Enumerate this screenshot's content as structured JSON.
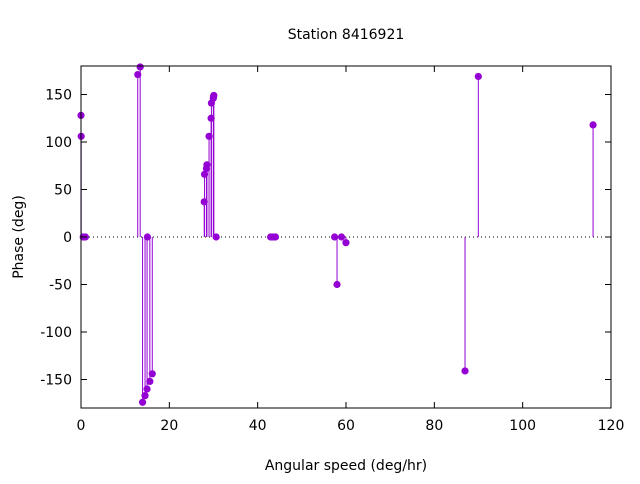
{
  "chart_data": {
    "type": "scatter",
    "style": "impulses-with-points",
    "title": "Station 8416921",
    "xlabel": "Angular speed (deg/hr)",
    "ylabel": "Phase (deg)",
    "xlim": [
      0,
      120
    ],
    "ylim": [
      -180,
      180
    ],
    "xticks": [
      0,
      20,
      40,
      60,
      80,
      100,
      120
    ],
    "yticks": [
      -150,
      -100,
      -50,
      0,
      50,
      100,
      150
    ],
    "grid": false,
    "zero_line": true,
    "color": "#9400d3",
    "series": [
      {
        "points": [
          {
            "x": 0.0,
            "y": 128
          },
          {
            "x": 0.04,
            "y": 106
          },
          {
            "x": 0.5,
            "y": 0
          },
          {
            "x": 1.0,
            "y": 0
          },
          {
            "x": 12.85,
            "y": 171
          },
          {
            "x": 13.4,
            "y": 179
          },
          {
            "x": 13.94,
            "y": -174
          },
          {
            "x": 14.5,
            "y": -167
          },
          {
            "x": 14.96,
            "y": -160
          },
          {
            "x": 15.04,
            "y": 0
          },
          {
            "x": 15.59,
            "y": -152
          },
          {
            "x": 16.14,
            "y": -144
          },
          {
            "x": 27.9,
            "y": 37
          },
          {
            "x": 27.97,
            "y": 66
          },
          {
            "x": 28.4,
            "y": 72
          },
          {
            "x": 28.51,
            "y": 76
          },
          {
            "x": 28.99,
            "y": 106
          },
          {
            "x": 29.46,
            "y": 125
          },
          {
            "x": 29.53,
            "y": 141
          },
          {
            "x": 29.96,
            "y": 146
          },
          {
            "x": 30.0,
            "y": 148
          },
          {
            "x": 30.08,
            "y": 149
          },
          {
            "x": 30.6,
            "y": 0
          },
          {
            "x": 42.93,
            "y": 0
          },
          {
            "x": 43.48,
            "y": 0
          },
          {
            "x": 44.03,
            "y": 0
          },
          {
            "x": 57.42,
            "y": 0
          },
          {
            "x": 57.97,
            "y": -50
          },
          {
            "x": 58.98,
            "y": 0
          },
          {
            "x": 59.99,
            "y": -6
          },
          {
            "x": 86.95,
            "y": -141
          },
          {
            "x": 89.96,
            "y": 169
          },
          {
            "x": 115.94,
            "y": 118
          }
        ]
      }
    ]
  }
}
